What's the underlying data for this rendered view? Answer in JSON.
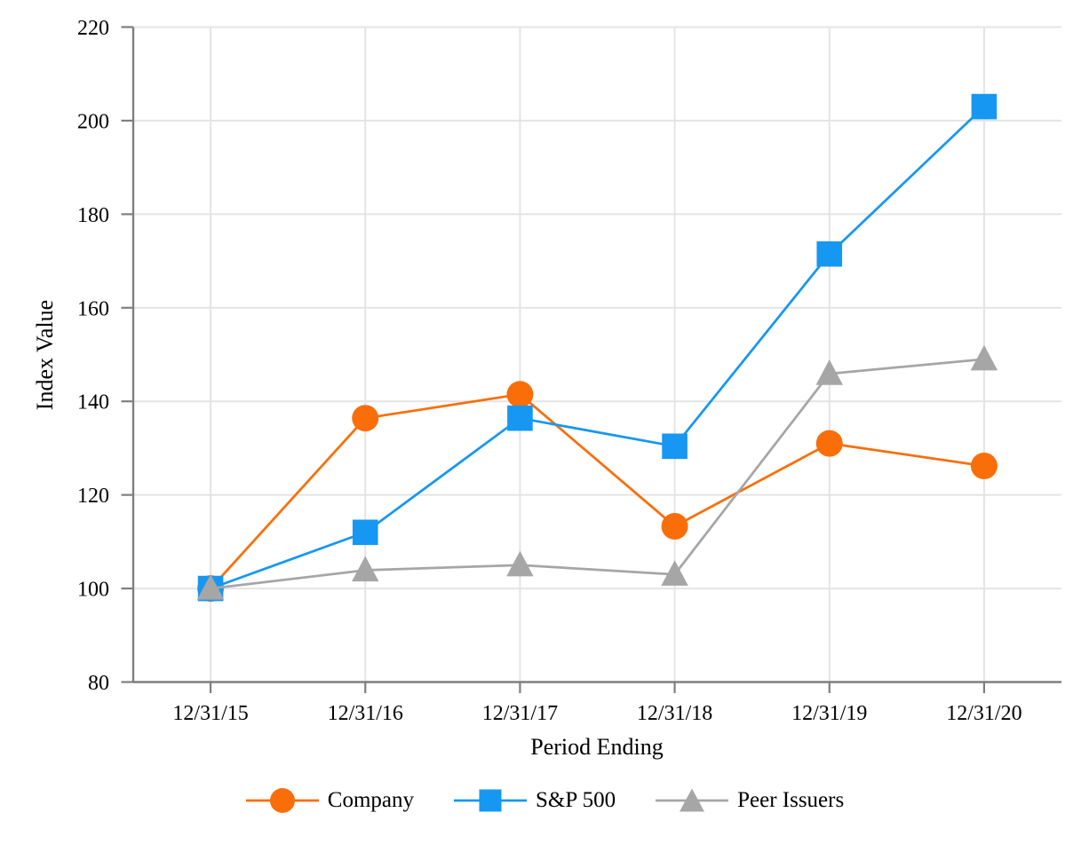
{
  "figure": {
    "background_color": "#ffffff",
    "text_color": "#000000"
  },
  "chart_data": {
    "type": "line",
    "title": "",
    "xlabel": "Period Ending",
    "ylabel": "Index Value",
    "categories": [
      "12/31/15",
      "12/31/16",
      "12/31/17",
      "12/31/18",
      "12/31/19",
      "12/31/20"
    ],
    "y_ticks": [
      80,
      100,
      120,
      140,
      160,
      180,
      200,
      220
    ],
    "ylim": [
      80,
      220
    ],
    "grid": true,
    "legend_position": "bottom-center",
    "series": [
      {
        "name": "Company",
        "marker": "circle",
        "color": "#FA6E09",
        "values": [
          100,
          136.4,
          141.5,
          113.3,
          131.0,
          126.2
        ]
      },
      {
        "name": "S&P 500",
        "marker": "square",
        "color": "#1697F2",
        "values": [
          100,
          112.0,
          136.4,
          130.4,
          171.5,
          203.0
        ]
      },
      {
        "name": "Peer Issuers",
        "marker": "triangle",
        "color": "#A6A6A6",
        "values": [
          100,
          103.9,
          105.0,
          103.0,
          145.9,
          149.0
        ]
      }
    ],
    "axis_color": "#7F7F7F",
    "grid_color": "#E4E4E4"
  }
}
